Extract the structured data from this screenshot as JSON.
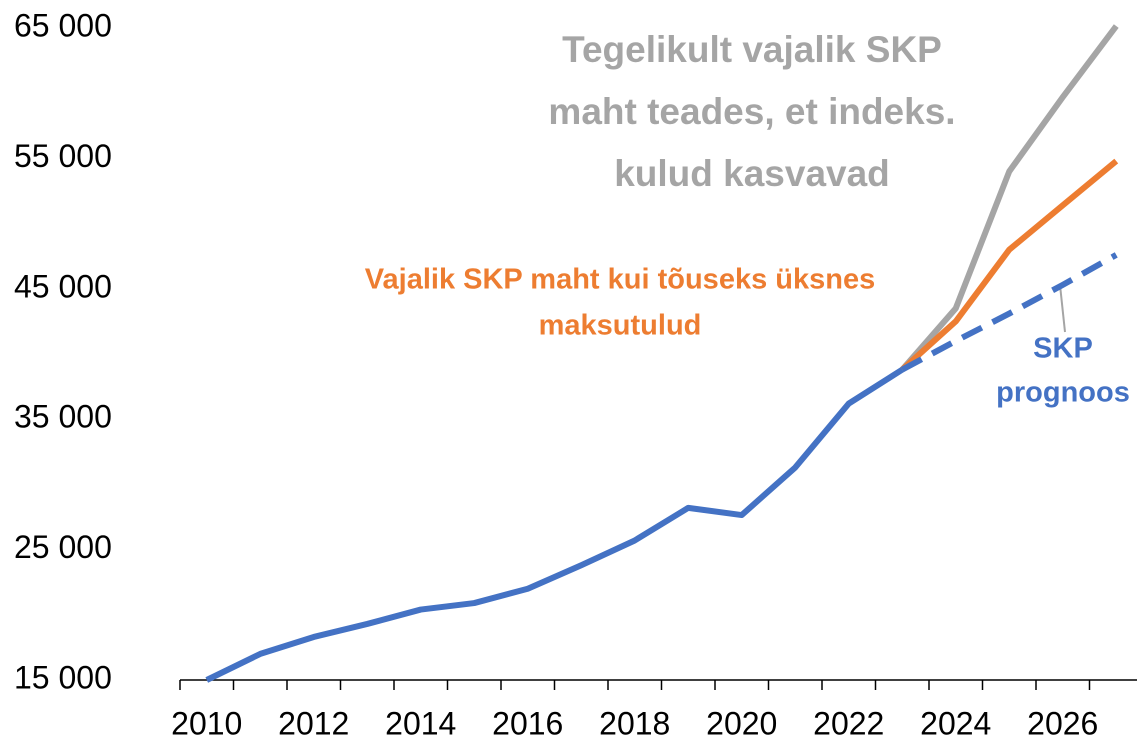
{
  "chart_data": {
    "type": "line",
    "categories": [
      "2010",
      null,
      "2012",
      null,
      "2014",
      null,
      "2016",
      null,
      "2018",
      null,
      "2020",
      null,
      "2022",
      null,
      "2024",
      null,
      "2026",
      null
    ],
    "series": [
      {
        "color": "#4472c4",
        "dashed": false,
        "values": [
          15000,
          17000,
          18300,
          19300,
          20400,
          20900,
          22000,
          23800,
          25700,
          28200,
          27650,
          31300,
          36200,
          38800,
          null,
          null,
          null,
          null
        ]
      },
      {
        "color": "#4472c4",
        "dashed": true,
        "values": [
          null,
          null,
          null,
          null,
          null,
          null,
          null,
          null,
          null,
          null,
          null,
          null,
          null,
          38800,
          41000,
          43100,
          45300,
          47600
        ]
      },
      {
        "color": "#ed7d31",
        "dashed": false,
        "values": [
          null,
          null,
          null,
          null,
          null,
          null,
          null,
          null,
          null,
          null,
          null,
          null,
          null,
          38800,
          42500,
          48000,
          51400,
          54800
        ]
      },
      {
        "color": "#a5a5a5",
        "dashed": false,
        "values": [
          null,
          null,
          null,
          null,
          null,
          null,
          null,
          null,
          null,
          null,
          null,
          null,
          null,
          38800,
          43500,
          54000,
          59700,
          65150
        ]
      }
    ],
    "ylim": [
      15000,
      65000
    ],
    "yticks": [
      {
        "value": 15000,
        "label": "15 000"
      },
      {
        "value": 25000,
        "label": "25 000"
      },
      {
        "value": 35000,
        "label": "35 000"
      },
      {
        "value": 45000,
        "label": "45 000"
      },
      {
        "value": 55000,
        "label": "55 000"
      },
      {
        "value": 65000,
        "label": "65 000"
      }
    ],
    "annotations": [
      {
        "color": "#a5a5a5",
        "lines": [
          "Tegelikult vajalik SKP",
          "maht teades, et indeks.",
          "kulud kasvavad"
        ]
      },
      {
        "color": "#ed7d31",
        "lines": [
          "Vajalik  SKP maht kui tõuseks üksnes",
          "maksutulud"
        ]
      },
      {
        "color": "#4472c4",
        "lines": [
          "SKP",
          "prognoos"
        ]
      }
    ]
  }
}
